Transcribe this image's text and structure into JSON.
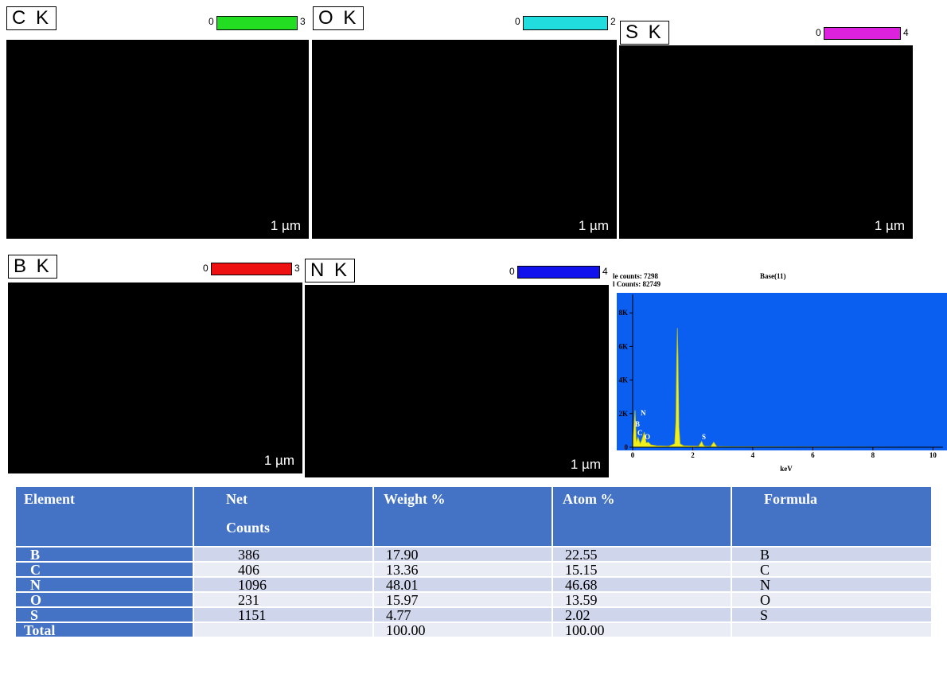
{
  "maps": [
    {
      "label": "C K",
      "scale_min": 0,
      "scale_max": 3,
      "color": "#22dd22",
      "scale_bar": "1 µm"
    },
    {
      "label": "O K",
      "scale_min": 0,
      "scale_max": 2,
      "color": "#22dddd",
      "scale_bar": "1 µm"
    },
    {
      "label": "S K",
      "scale_min": 0,
      "scale_max": 4,
      "color": "#dd22dd",
      "scale_bar": "1 µm"
    },
    {
      "label": "B K",
      "scale_min": 0,
      "scale_max": 3,
      "color": "#ee1111",
      "scale_bar": "1 µm"
    },
    {
      "label": "N K",
      "scale_min": 0,
      "scale_max": 4,
      "color": "#1111ee",
      "scale_bar": "1 µm"
    }
  ],
  "chart_data": {
    "type": "area",
    "header_left": [
      "le counts: 7298",
      "l Counts: 82749"
    ],
    "header_right": "Base(11)",
    "x_label": "keV",
    "color": "#f0f020",
    "background": "#0a5ff0",
    "x": [
      0,
      0.08,
      0.12,
      0.18,
      0.25,
      0.3,
      0.39,
      0.45,
      0.52,
      0.6,
      0.8,
      1.2,
      1.4,
      1.44,
      1.47,
      1.49,
      1.51,
      1.54,
      1.58,
      1.7,
      2.2,
      2.3,
      2.35,
      2.4,
      2.6,
      2.7,
      2.8,
      3.2,
      10.2
    ],
    "values": [
      0,
      2200,
      300,
      600,
      200,
      400,
      900,
      250,
      300,
      150,
      80,
      60,
      200,
      1500,
      5500,
      7100,
      5400,
      1200,
      200,
      80,
      60,
      350,
      120,
      60,
      40,
      300,
      40,
      30,
      0
    ],
    "xlim": [
      0,
      10.23
    ],
    "xticks": [
      0,
      2,
      4,
      6,
      8,
      10
    ],
    "ylim": [
      0,
      9100
    ],
    "yticks": [
      0,
      {
        "value": 2000,
        "label": "2K"
      },
      {
        "value": 4000,
        "label": "4K"
      },
      {
        "value": 6000,
        "label": "6K"
      },
      {
        "value": 8000,
        "label": "8K"
      }
    ],
    "peak_labels": [
      "N",
      "B",
      "C",
      "O",
      "S"
    ]
  },
  "table": {
    "header": [
      "Element",
      "Net\n\nCounts",
      "Weight %",
      "Atom %",
      "Formula"
    ],
    "rows": [
      [
        "B",
        "386",
        "17.90",
        "22.55",
        "B"
      ],
      [
        "C",
        "406",
        "13.36",
        "15.15",
        "C"
      ],
      [
        "N",
        "1096",
        "48.01",
        "46.68",
        "N"
      ],
      [
        "O",
        "231",
        "15.97",
        "13.59",
        "O"
      ],
      [
        "S",
        "1151",
        "4.77",
        "2.02",
        "S"
      ],
      [
        "Total",
        "",
        "100.00",
        "100.00",
        ""
      ]
    ]
  }
}
